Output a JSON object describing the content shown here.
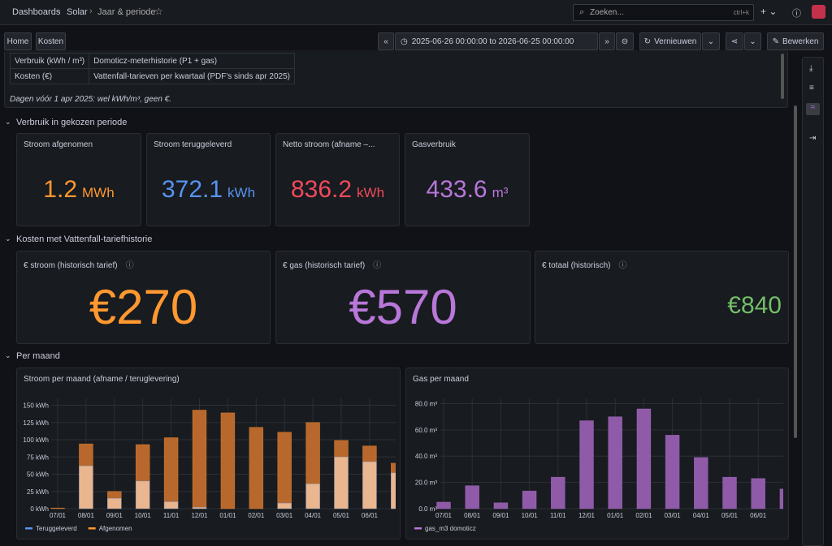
{
  "header": {
    "breadcrumbs": [
      "Dashboards",
      "Solar",
      "Jaar & periode"
    ],
    "search": "Zoeken...",
    "shortcut": "ctrl+k"
  },
  "toolbar": {
    "links": [
      "Home",
      "Kosten"
    ],
    "time_range": "2025-06-26 00:00:00 to 2026-06-25 00:00:00",
    "refresh": "Vernieuwen",
    "edit": "Bewerken"
  },
  "info": {
    "rows": [
      [
        "Verbruik (kWh / m³)",
        "Domoticz-meterhistorie (P1 + gas)"
      ],
      [
        "Kosten (€)",
        "Vattenfall-tarieven per kwartaal (PDF's sinds apr 2025)"
      ]
    ],
    "note": "Dagen vóór 1 apr 2025: wel kWh/m³, geen €."
  },
  "rows": [
    "Verbruik in gekozen periode",
    "Kosten met Vattenfall-tariefhistorie",
    "Per maand"
  ],
  "usage_stats": [
    {
      "title": "Stroom afgenomen",
      "value": 1.2,
      "unit": "MWh",
      "color": "#ff9830"
    },
    {
      "title": "Stroom teruggeleverd",
      "value": 372.1,
      "unit": "kWh",
      "color": "#5794f2"
    },
    {
      "title": "Netto stroom (afname –...",
      "value": 836.2,
      "unit": "kWh",
      "color": "#f2495c"
    },
    {
      "title": "Gasverbruik",
      "value": 433.6,
      "unit": "m³",
      "color": "#b877d9"
    }
  ],
  "cost_stats": [
    {
      "title": "€ stroom (historisch tarief)",
      "prefix": "€",
      "value": 270,
      "color": "#ff9830"
    },
    {
      "title": "€ gas (historisch tarief)",
      "prefix": "€",
      "value": 570,
      "color": "#b877d9"
    },
    {
      "title": "€ totaal (historisch)",
      "prefix": "€",
      "value": 840,
      "color": "#73bf69"
    }
  ],
  "monthly_charts": [
    {
      "type": "bar",
      "title": "Stroom per maand (afname / teruglevering)",
      "categories": [
        "07/01",
        "08/01",
        "09/01",
        "10/01",
        "11/01",
        "12/01",
        "01/01",
        "02/01",
        "03/01",
        "04/01",
        "05/01",
        "06/01",
        null
      ],
      "series": [
        {
          "name": "Teruggeleverd",
          "color": "#5794f2",
          "bar_color": "#e9b690",
          "values": [
            0,
            62,
            15,
            40,
            10,
            2,
            0,
            0,
            8,
            36,
            75,
            68,
            52
          ]
        },
        {
          "name": "Afgenomen",
          "color": "#ff9830",
          "bar_color": "#b8682c",
          "values": [
            1,
            94,
            25,
            93,
            103,
            143,
            139,
            118,
            111,
            125,
            99,
            91,
            66
          ]
        }
      ],
      "ylim": [
        0,
        160
      ],
      "yticks": [
        {
          "value": 0,
          "label": "0 kWh"
        },
        {
          "value": 25,
          "label": "25 kWh"
        },
        {
          "value": 50,
          "label": "50 kWh"
        },
        {
          "value": 75,
          "label": "75 kWh"
        },
        {
          "value": 100,
          "label": "100 kWh"
        },
        {
          "value": 125,
          "label": "125 kWh"
        },
        {
          "value": 150,
          "label": "150 kWh"
        }
      ],
      "grid": true
    },
    {
      "type": "bar",
      "title": "Gas per maand",
      "categories": [
        "07/01",
        "08/01",
        "09/01",
        "10/01",
        "11/01",
        "12/01",
        "01/01",
        "02/01",
        "03/01",
        "04/01",
        "05/01",
        "06/01",
        null
      ],
      "series": [
        {
          "name": "gas_m3 domoticz",
          "color": "#b877d9",
          "bar_color": "#8f5aa8",
          "values": [
            5,
            17.5,
            4.5,
            13.5,
            24,
            67,
            70,
            76,
            56,
            39,
            24,
            23,
            15
          ]
        }
      ],
      "ylim": [
        0,
        84
      ],
      "yticks": [
        {
          "value": 0,
          "label": "0.0 m³"
        },
        {
          "value": 20,
          "label": "20.0 m³"
        },
        {
          "value": 40,
          "label": "40.0 m³"
        },
        {
          "value": 60,
          "label": "60.0 m³"
        },
        {
          "value": 80,
          "label": "80.0 m³"
        }
      ],
      "grid": true
    }
  ]
}
